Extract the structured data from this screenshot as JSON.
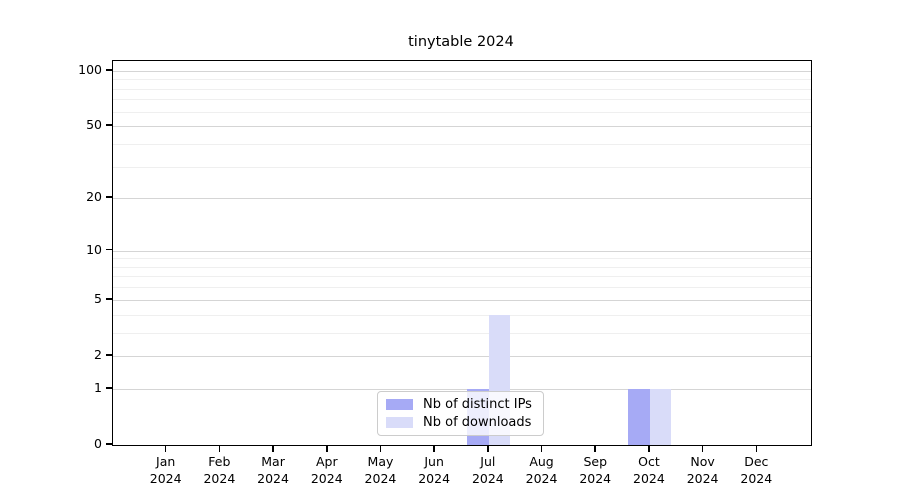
{
  "title": "tinytable 2024",
  "legend": {
    "items": [
      {
        "label": "Nb of distinct IPs",
        "color": "#a6aaf5"
      },
      {
        "label": "Nb of downloads",
        "color": "#d9dcf9"
      }
    ]
  },
  "axes": {
    "y_tick_labels": [
      "0",
      "1",
      "2",
      "5",
      "10",
      "20",
      "50",
      "100"
    ],
    "x_month_labels": [
      "Jan",
      "Feb",
      "Mar",
      "Apr",
      "May",
      "Jun",
      "Jul",
      "Aug",
      "Sep",
      "Oct",
      "Nov",
      "Dec"
    ],
    "x_year_label": "2024"
  },
  "colors": {
    "major_grid": "#d5d5d5",
    "minor_grid": "#efefef",
    "axis": "#000000",
    "background": "#ffffff"
  },
  "chart_data": {
    "type": "bar",
    "title": "tinytable 2024",
    "categories": [
      "Jan 2024",
      "Feb 2024",
      "Mar 2024",
      "Apr 2024",
      "May 2024",
      "Jun 2024",
      "Jul 2024",
      "Aug 2024",
      "Sep 2024",
      "Oct 2024",
      "Nov 2024",
      "Dec 2024"
    ],
    "series": [
      {
        "name": "Nb of distinct IPs",
        "color": "#a6aaf5",
        "values": [
          0,
          0,
          0,
          0,
          0,
          0,
          1,
          0,
          0,
          1,
          0,
          0
        ]
      },
      {
        "name": "Nb of downloads",
        "color": "#d9dcf9",
        "values": [
          0,
          0,
          0,
          0,
          0,
          0,
          4,
          0,
          0,
          1,
          0,
          0
        ]
      }
    ],
    "xlabel": "",
    "ylabel": "",
    "y_scale": "log1p",
    "y_major_ticks": [
      0,
      1,
      2,
      5,
      10,
      20,
      50,
      100
    ],
    "y_minor_ticks": [
      3,
      4,
      6,
      7,
      8,
      9,
      30,
      40,
      60,
      70,
      80,
      90
    ],
    "ylim": [
      0,
      113
    ],
    "grid": true,
    "legend_position": "inside-bottom-center"
  }
}
